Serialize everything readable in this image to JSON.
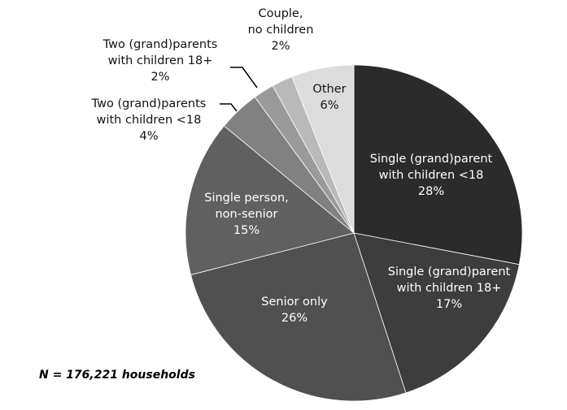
{
  "chart_data": {
    "type": "pie",
    "categories": [
      [
        "Single (grand)parent",
        "with children <18"
      ],
      [
        "Single (grand)parent",
        "with children 18+"
      ],
      [
        "Senior only"
      ],
      [
        "Single person,",
        "non-senior"
      ],
      [
        "Two (grand)parents",
        "with children <18"
      ],
      [
        "Two (grand)parents",
        "with children 18+"
      ],
      [
        "Couple,",
        "no children"
      ],
      [
        "Other"
      ]
    ],
    "values": [
      28,
      17,
      26,
      15,
      4,
      2,
      2,
      6
    ],
    "value_labels": [
      "28%",
      "17%",
      "26%",
      "15%",
      "4%",
      "2%",
      "2%",
      "6%"
    ],
    "colors": [
      "#2b2b2b",
      "#3d3d3d",
      "#505050",
      "#606060",
      "#818181",
      "#9a9a9a",
      "#b9b9b9",
      "#dcdcdc"
    ],
    "note": "N = 176,221 households"
  }
}
